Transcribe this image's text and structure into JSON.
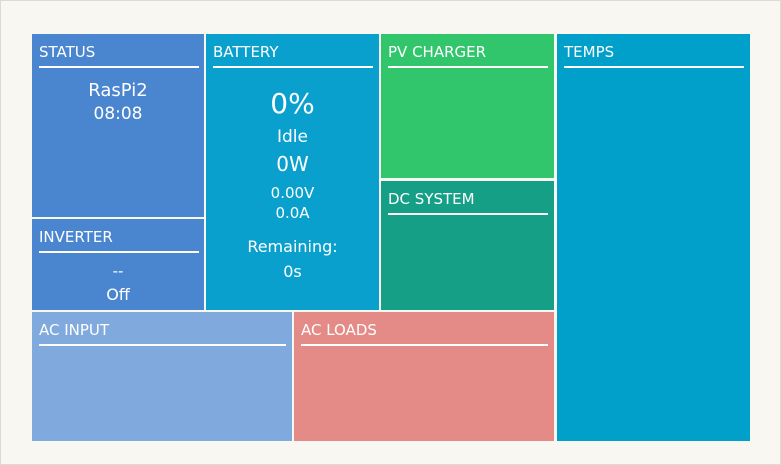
{
  "status": {
    "title": "STATUS",
    "host": "RasPi2",
    "time": "08:08"
  },
  "inverter": {
    "title": "INVERTER",
    "value": "--",
    "state": "Off"
  },
  "battery": {
    "title": "BATTERY",
    "soc": "0%",
    "state": "Idle",
    "power": "0W",
    "voltage": "0.00V",
    "current": "0.0A",
    "remaining_label": "Remaining:",
    "remaining": "0s"
  },
  "pv_charger": {
    "title": "PV CHARGER"
  },
  "dc_system": {
    "title": "DC SYSTEM"
  },
  "temps": {
    "title": "TEMPS"
  },
  "ac_input": {
    "title": "AC INPUT"
  },
  "ac_loads": {
    "title": "AC LOADS"
  }
}
